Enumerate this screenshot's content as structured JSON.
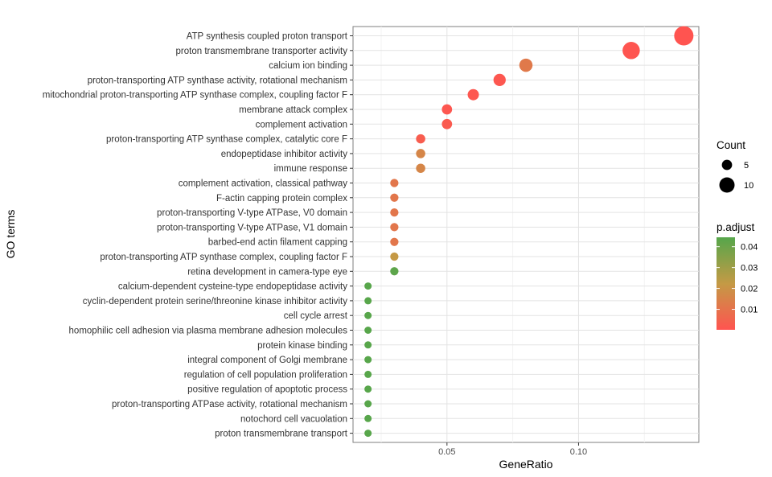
{
  "chart_data": {
    "type": "scatter",
    "subtype": "dotplot",
    "xlabel": "GeneRatio",
    "ylabel": "GO terms",
    "xlim": [
      0.0143,
      0.1457
    ],
    "xticks": [
      0.05,
      0.1
    ],
    "xtick_labels": [
      "0.05",
      "0.10"
    ],
    "grid": true,
    "terms": [
      {
        "name": "ATP synthesis coupled proton transport",
        "gene_ratio": 0.14,
        "count": 14,
        "p_adjust": 0.0002
      },
      {
        "name": "proton transmembrane transporter activity",
        "gene_ratio": 0.12,
        "count": 12,
        "p_adjust": 0.0005
      },
      {
        "name": "calcium ion binding",
        "gene_ratio": 0.08,
        "count": 8,
        "p_adjust": 0.012
      },
      {
        "name": "proton-transporting ATP synthase activity, rotational mechanism",
        "gene_ratio": 0.07,
        "count": 7,
        "p_adjust": 0.001
      },
      {
        "name": "mitochondrial proton-transporting ATP synthase complex, coupling factor F",
        "gene_ratio": 0.06,
        "count": 6,
        "p_adjust": 0.001
      },
      {
        "name": "membrane attack complex",
        "gene_ratio": 0.05,
        "count": 5,
        "p_adjust": 0.001
      },
      {
        "name": "complement activation",
        "gene_ratio": 0.05,
        "count": 5,
        "p_adjust": 0.002
      },
      {
        "name": "proton-transporting ATP synthase complex, catalytic core F",
        "gene_ratio": 0.04,
        "count": 4,
        "p_adjust": 0.003
      },
      {
        "name": "endopeptidase inhibitor activity",
        "gene_ratio": 0.04,
        "count": 4,
        "p_adjust": 0.016
      },
      {
        "name": "immune response",
        "gene_ratio": 0.04,
        "count": 4,
        "p_adjust": 0.016
      },
      {
        "name": "complement activation, classical pathway",
        "gene_ratio": 0.03,
        "count": 3,
        "p_adjust": 0.011
      },
      {
        "name": "F-actin capping protein complex",
        "gene_ratio": 0.03,
        "count": 3,
        "p_adjust": 0.011
      },
      {
        "name": "proton-transporting V-type ATPase, V0 domain",
        "gene_ratio": 0.03,
        "count": 3,
        "p_adjust": 0.011
      },
      {
        "name": "proton-transporting V-type ATPase, V1 domain",
        "gene_ratio": 0.03,
        "count": 3,
        "p_adjust": 0.011
      },
      {
        "name": "barbed-end actin filament capping",
        "gene_ratio": 0.03,
        "count": 3,
        "p_adjust": 0.011
      },
      {
        "name": "proton-transporting ATP synthase complex, coupling factor F",
        "gene_ratio": 0.03,
        "count": 3,
        "p_adjust": 0.022
      },
      {
        "name": "retina development in camera-type eye",
        "gene_ratio": 0.03,
        "count": 3,
        "p_adjust": 0.043
      },
      {
        "name": "calcium-dependent cysteine-type endopeptidase activity",
        "gene_ratio": 0.02,
        "count": 2,
        "p_adjust": 0.044
      },
      {
        "name": "cyclin-dependent protein serine/threonine kinase inhibitor activity",
        "gene_ratio": 0.02,
        "count": 2,
        "p_adjust": 0.044
      },
      {
        "name": "cell cycle arrest",
        "gene_ratio": 0.02,
        "count": 2,
        "p_adjust": 0.044
      },
      {
        "name": "homophilic cell adhesion via plasma membrane adhesion molecules",
        "gene_ratio": 0.02,
        "count": 2,
        "p_adjust": 0.044
      },
      {
        "name": "protein kinase binding",
        "gene_ratio": 0.02,
        "count": 2,
        "p_adjust": 0.044
      },
      {
        "name": "integral component of Golgi membrane",
        "gene_ratio": 0.02,
        "count": 2,
        "p_adjust": 0.044
      },
      {
        "name": "regulation of cell population proliferation",
        "gene_ratio": 0.02,
        "count": 2,
        "p_adjust": 0.044
      },
      {
        "name": "positive regulation of apoptotic process",
        "gene_ratio": 0.02,
        "count": 2,
        "p_adjust": 0.044
      },
      {
        "name": "proton-transporting ATPase activity, rotational mechanism",
        "gene_ratio": 0.02,
        "count": 2,
        "p_adjust": 0.044
      },
      {
        "name": "notochord cell vacuolation",
        "gene_ratio": 0.02,
        "count": 2,
        "p_adjust": 0.044
      },
      {
        "name": "proton transmembrane transport",
        "gene_ratio": 0.02,
        "count": 2,
        "p_adjust": 0.044
      }
    ],
    "legend_count": {
      "title": "Count",
      "count_range": [
        2,
        14
      ],
      "entries": [
        {
          "label": "5",
          "value": 5
        },
        {
          "label": "10",
          "value": 10
        }
      ]
    },
    "legend_color": {
      "title": "p.adjust",
      "range": [
        0.0002,
        0.0445
      ],
      "low_color": "#FF5450",
      "mid_color": "#C49A45",
      "high_color": "#56A64B",
      "ticks": [
        {
          "label": "0.04",
          "value": 0.04
        },
        {
          "label": "0.03",
          "value": 0.03
        },
        {
          "label": "0.02",
          "value": 0.02
        },
        {
          "label": "0.01",
          "value": 0.01
        }
      ]
    }
  }
}
